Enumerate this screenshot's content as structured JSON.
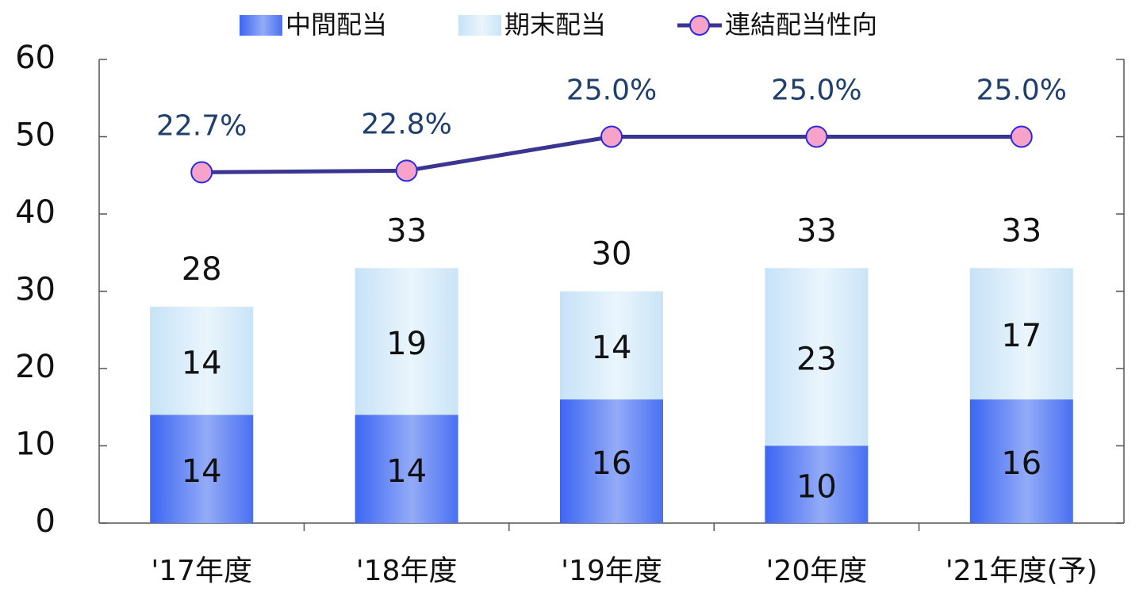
{
  "chart_data": {
    "type": "bar",
    "stacked": true,
    "categories": [
      "'17年度",
      "'18年度",
      "'19年度",
      "'20年度",
      "'21年度(予)"
    ],
    "series": [
      {
        "name": "中間配当",
        "color": "#3d66f2",
        "values": [
          14,
          14,
          16,
          10,
          16
        ]
      },
      {
        "name": "期末配当",
        "color": "#cfe7f8",
        "values": [
          14,
          19,
          14,
          23,
          17
        ]
      },
      {
        "name": "連結配当性向",
        "type": "line",
        "axis": "y2",
        "color": "#3b3592",
        "marker_color": "#f7a3c9",
        "values": [
          22.7,
          22.8,
          25.0,
          25.0,
          25.0
        ],
        "value_labels": [
          "22.7%",
          "22.8%",
          "25.0%",
          "25.0%",
          "25.0%"
        ]
      }
    ],
    "totals": [
      28,
      33,
      30,
      33,
      33
    ],
    "ylim": [
      0,
      60
    ],
    "yticks": [
      0,
      10,
      20,
      30,
      40,
      50,
      60
    ],
    "y2lim": [
      0,
      30
    ],
    "grid": false,
    "legend": "top"
  }
}
